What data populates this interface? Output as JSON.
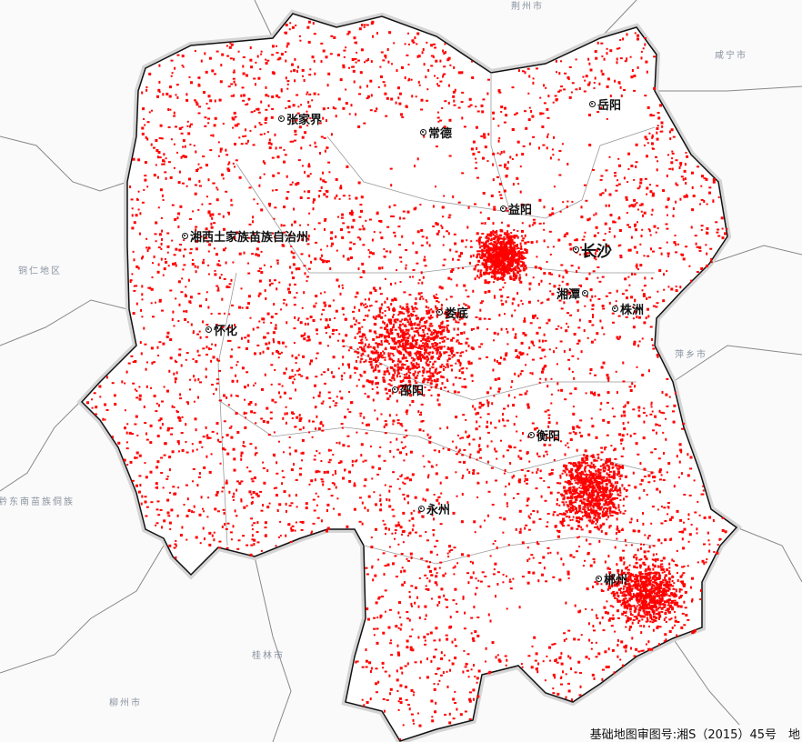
{
  "map": {
    "neighbor_labels": [
      {
        "name": "荆州市"
      },
      {
        "name": "咸宁市"
      },
      {
        "name": "萍乡市"
      },
      {
        "name": "铜仁地区"
      },
      {
        "name": "黔东南苗族侗族"
      },
      {
        "name": "桂林市"
      },
      {
        "name": "柳州市"
      }
    ],
    "cities": [
      {
        "name": "岳阳"
      },
      {
        "name": "张家界"
      },
      {
        "name": "常德"
      },
      {
        "name": "益阳"
      },
      {
        "name": "长沙"
      },
      {
        "name": "湘西土家族苗族自治州"
      },
      {
        "name": "湘潭"
      },
      {
        "name": "株洲"
      },
      {
        "name": "娄底"
      },
      {
        "name": "怀化"
      },
      {
        "name": "邵阳"
      },
      {
        "name": "衡阳"
      },
      {
        "name": "永州"
      },
      {
        "name": "郴州"
      }
    ],
    "approval_number": "基础地图审图号:湘S（2015）45号　地",
    "colors": {
      "points": "#ff0000",
      "province_fill": "#ffffff",
      "border": "#111111",
      "neighbor_border": "#777777",
      "background": "#fafafa"
    }
  }
}
